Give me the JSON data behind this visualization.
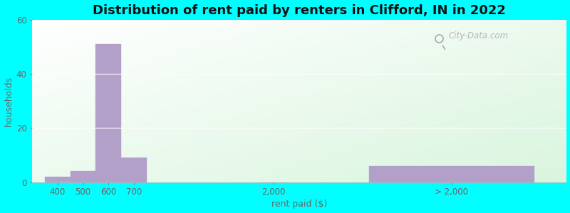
{
  "title": "Distribution of rent paid by renters in Clifford, IN in 2022",
  "xlabel": "rent paid ($)",
  "ylabel": "households",
  "bar_color": "#b3a0c8",
  "background_outer": "#00ffff",
  "ylim": [
    0,
    60
  ],
  "yticks": [
    0,
    20,
    40,
    60
  ],
  "bar_positions": [
    0.5,
    1.5,
    2.5,
    3.5,
    9.0,
    16.0
  ],
  "bar_widths": [
    1.0,
    1.0,
    1.0,
    1.0,
    1.0,
    6.5
  ],
  "values": [
    2,
    4,
    51,
    9,
    0,
    6
  ],
  "tick_positions": [
    0.5,
    1.5,
    2.5,
    3.5,
    9.0,
    16.0
  ],
  "tick_labels": [
    "400",
    "500",
    "600",
    "700",
    "2,000",
    "> 2,000"
  ],
  "watermark": "City-Data.com",
  "title_fontsize": 13,
  "axis_label_fontsize": 9,
  "tick_fontsize": 8.5,
  "xlim": [
    -0.5,
    20.5
  ]
}
